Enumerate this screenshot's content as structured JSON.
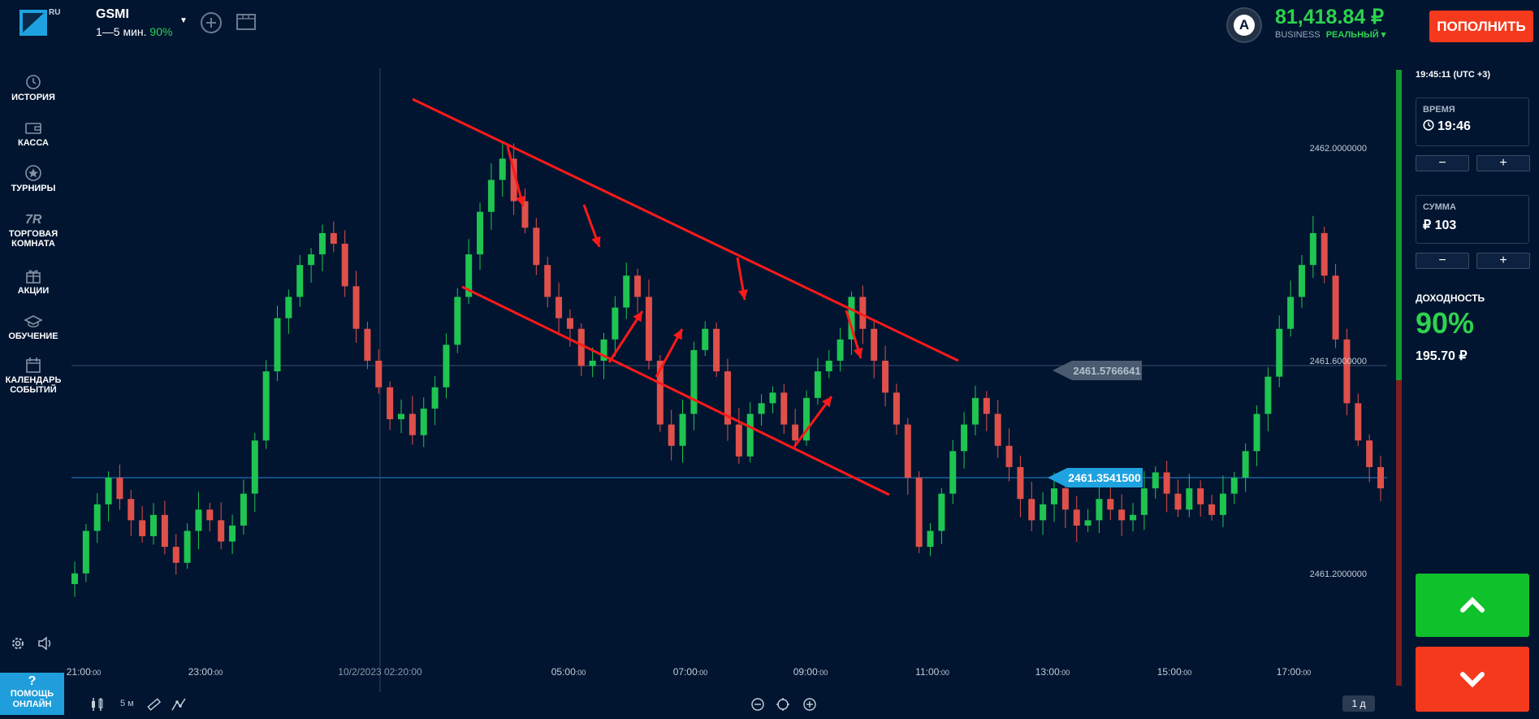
{
  "header": {
    "logo_suffix": "RU",
    "asset": {
      "name": "GSMI",
      "expiry": "1—5 мин.",
      "payout": "90%"
    },
    "balance": "81,418.84 ₽",
    "account_type": "BUSINESS",
    "account_mode": "РЕАЛЬНЫЙ ▾",
    "avatar_letter": "A",
    "deposit_label": "ПОПОЛНИТЬ"
  },
  "sidebar": {
    "items": [
      {
        "label": "ИСТОРИЯ",
        "icon": "history-icon"
      },
      {
        "label": "КАССА",
        "icon": "wallet-icon"
      },
      {
        "label": "ТУРНИРЫ",
        "icon": "star-icon"
      },
      {
        "label": "ТОРГОВАЯ КОМНАТА",
        "icon": "trading-room-icon"
      },
      {
        "label": "АКЦИИ",
        "icon": "gift-icon"
      },
      {
        "label": "ОБУЧЕНИЕ",
        "icon": "graduation-cap-icon"
      },
      {
        "label": "КАЛЕНДАРЬ СОБЫТИЙ",
        "icon": "calendar-icon"
      }
    ],
    "help_label": "ПОМОЩЬ ОНЛАЙН",
    "help_symbol": "?"
  },
  "chart": {
    "price_ticks": [
      "2462.0000000",
      "2461.6000000",
      "2461.2000000"
    ],
    "time_ticks": [
      {
        "main": "21:00",
        "sec": ":00"
      },
      {
        "main": "23:00",
        "sec": ":00"
      },
      {
        "main": "05:00",
        "sec": ":00"
      },
      {
        "main": "07:00",
        "sec": ":00"
      },
      {
        "main": "09:00",
        "sec": ":00"
      },
      {
        "main": "11:00",
        "sec": ":00"
      },
      {
        "main": "13:00",
        "sec": ":00"
      },
      {
        "main": "15:00",
        "sec": ":00"
      },
      {
        "main": "17:00",
        "sec": ":00"
      }
    ],
    "crosshair_label": "10/2/2023 02:20:00",
    "current_price": "2461.3541500",
    "crosshair_price": "2461.5766641",
    "timeframe": "5 м",
    "range": "1 д",
    "colors": {
      "up": "#1fc451",
      "down": "#e0504a",
      "annotation": "#ff1a1a",
      "current": "#1fa3e0"
    }
  },
  "chart_data": {
    "type": "candlestick",
    "price_range": [
      2461.0,
      2462.2
    ],
    "current_price": 2461.35415,
    "closes": [
      2461.2,
      2461.28,
      2461.33,
      2461.38,
      2461.34,
      2461.3,
      2461.27,
      2461.31,
      2461.25,
      2461.22,
      2461.28,
      2461.32,
      2461.3,
      2461.26,
      2461.29,
      2461.35,
      2461.45,
      2461.58,
      2461.68,
      2461.72,
      2461.78,
      2461.8,
      2461.84,
      2461.82,
      2461.74,
      2461.66,
      2461.6,
      2461.55,
      2461.49,
      2461.5,
      2461.46,
      2461.51,
      2461.55,
      2461.63,
      2461.72,
      2461.8,
      2461.88,
      2461.94,
      2461.98,
      2461.9,
      2461.85,
      2461.78,
      2461.72,
      2461.68,
      2461.66,
      2461.59,
      2461.6,
      2461.64,
      2461.7,
      2461.76,
      2461.72,
      2461.6,
      2461.48,
      2461.44,
      2461.5,
      2461.62,
      2461.66,
      2461.58,
      2461.48,
      2461.42,
      2461.5,
      2461.52,
      2461.54,
      2461.48,
      2461.45,
      2461.53,
      2461.58,
      2461.6,
      2461.64,
      2461.72,
      2461.66,
      2461.6,
      2461.54,
      2461.48,
      2461.38,
      2461.25,
      2461.28,
      2461.35,
      2461.43,
      2461.48,
      2461.53,
      2461.5,
      2461.44,
      2461.4,
      2461.34,
      2461.3,
      2461.33,
      2461.36,
      2461.32,
      2461.29,
      2461.3,
      2461.34,
      2461.32,
      2461.3,
      2461.31,
      2461.36,
      2461.39,
      2461.35,
      2461.32,
      2461.36,
      2461.33,
      2461.31,
      2461.35,
      2461.38,
      2461.43,
      2461.5,
      2461.57,
      2461.66,
      2461.72,
      2461.78,
      2461.84,
      2461.76,
      2461.64,
      2461.52,
      2461.45,
      2461.4,
      2461.36
    ]
  },
  "panel": {
    "clock": "19:45:11",
    "timezone": "(UTC +3)",
    "time_label": "ВРЕМЯ",
    "time_value": "19:46",
    "amount_label": "СУММА",
    "amount_value": "₽ 103",
    "payout_label": "ДОХОДНОСТЬ",
    "payout_value": "90%",
    "profit": "195.70 ₽",
    "minus": "−",
    "plus": "+"
  }
}
